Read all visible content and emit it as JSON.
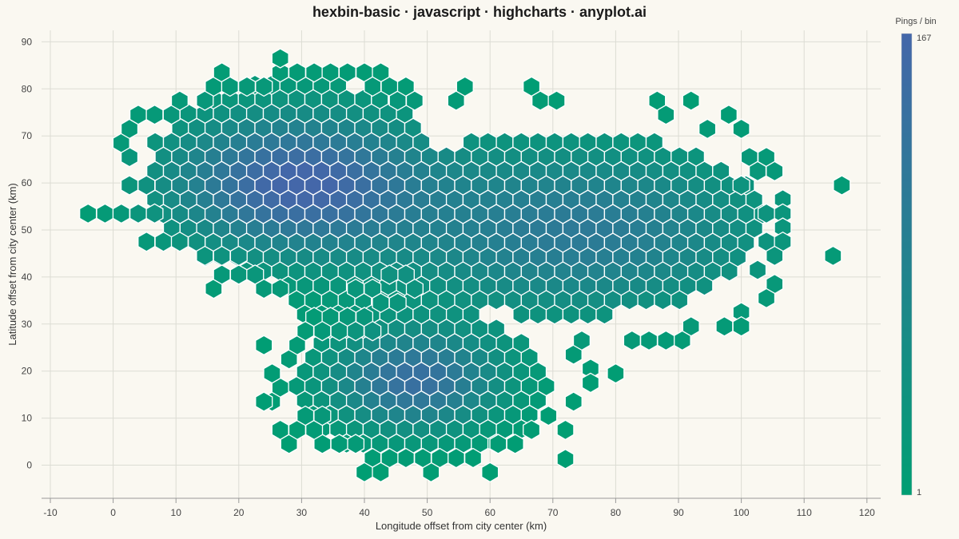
{
  "title": "hexbin-basic · javascript · highcharts · anyplot.ai",
  "colors": {
    "background": "#FAF8F1",
    "low": "#009E73",
    "high": "#4467A9",
    "hex_stroke": "#FFFFFF",
    "grid": "#DCDCD4"
  },
  "chart_data": {
    "type": "heatmap",
    "subtype": "hexbin",
    "title": "hexbin-basic · javascript · highcharts · anyplot.ai",
    "xlabel": "Longitude offset from city center (km)",
    "ylabel": "Latitude offset from city center (km)",
    "xlim": [
      -10,
      122
    ],
    "ylim": [
      -7,
      93
    ],
    "xticks": [
      "-10",
      "0",
      "10",
      "20",
      "30",
      "40",
      "50",
      "60",
      "70",
      "80",
      "90",
      "100",
      "110",
      "120"
    ],
    "yticks": [
      "0",
      "10",
      "20",
      "30",
      "40",
      "50",
      "60",
      "70",
      "80",
      "90"
    ],
    "grid": true,
    "hex_width_km": 2.65,
    "row_spacing_km": 3.05,
    "colorbar": {
      "title": "Pings / bin",
      "min": 1,
      "max": 167,
      "min_label": "1",
      "max_label": "167",
      "position": "right"
    },
    "clusters": [
      {
        "x": 29,
        "y": 60,
        "sx": 14,
        "sy": 10,
        "peak": 167
      },
      {
        "x": 48,
        "y": 18,
        "sx": 9,
        "sy": 7,
        "peak": 140
      },
      {
        "x": 74,
        "y": 50,
        "sx": 20,
        "sy": 12,
        "peak": 110
      }
    ],
    "bins": [
      [
        -4,
        53.5
      ],
      [
        -1.3,
        53.5
      ],
      [
        1.3,
        53.5
      ],
      [
        4,
        53.5
      ],
      [
        6.6,
        53.5
      ],
      [
        5.3,
        47.5
      ],
      [
        8,
        47.5
      ],
      [
        10.6,
        47.5
      ],
      [
        13.3,
        47.5
      ],
      [
        2.6,
        59.5
      ],
      [
        5.3,
        59.5
      ],
      [
        2.6,
        65.5
      ],
      [
        1.3,
        68.5
      ],
      [
        2.6,
        71.5
      ],
      [
        4,
        74.5
      ],
      [
        6.6,
        74.5
      ],
      [
        9.3,
        74.5
      ],
      [
        10.6,
        77.5
      ],
      [
        14.6,
        77.5
      ],
      [
        16,
        80.5
      ],
      [
        17.3,
        83.5
      ],
      [
        18.6,
        80.5
      ],
      [
        21.3,
        80.5
      ],
      [
        24,
        80.5
      ],
      [
        26.6,
        83.5
      ],
      [
        26.6,
        86.5
      ],
      [
        29.3,
        83.5
      ],
      [
        32,
        83.5
      ],
      [
        34.6,
        83.5
      ],
      [
        37.3,
        83.5
      ],
      [
        40,
        83.5
      ],
      [
        42.6,
        83.5
      ],
      [
        41.3,
        80.5
      ],
      [
        44,
        80.5
      ],
      [
        45.3,
        77.5
      ],
      [
        46.6,
        80.5
      ],
      [
        48,
        77.5
      ],
      [
        54.6,
        77.5
      ],
      [
        56,
        80.5
      ],
      [
        66.6,
        80.5
      ],
      [
        68,
        77.5
      ],
      [
        70.6,
        77.5
      ],
      [
        86.6,
        77.5
      ],
      [
        92,
        77.5
      ],
      [
        88,
        74.5
      ],
      [
        98,
        74.5
      ],
      [
        94.6,
        71.5
      ],
      [
        100,
        71.5
      ],
      [
        101.3,
        65.5
      ],
      [
        104,
        65.5
      ],
      [
        102.6,
        62.5
      ],
      [
        105.3,
        62.5
      ],
      [
        100,
        59.5
      ],
      [
        116,
        59.5
      ],
      [
        106.6,
        56.5
      ],
      [
        104,
        53.5
      ],
      [
        106.6,
        53.5
      ],
      [
        106.6,
        50.5
      ],
      [
        104,
        47.5
      ],
      [
        106.6,
        47.5
      ],
      [
        105.3,
        44.5
      ],
      [
        114.6,
        44.5
      ],
      [
        102.6,
        41.5
      ],
      [
        105.3,
        38.5
      ],
      [
        104,
        35.5
      ],
      [
        100,
        32.5
      ],
      [
        97.3,
        29.5
      ],
      [
        100,
        29.5
      ],
      [
        92,
        29.5
      ],
      [
        90.6,
        26.5
      ],
      [
        88,
        26.5
      ],
      [
        85.3,
        26.5
      ],
      [
        82.6,
        26.5
      ],
      [
        76,
        20.5
      ],
      [
        80,
        19.5
      ],
      [
        76,
        17.5
      ],
      [
        73.3,
        23.5
      ],
      [
        74.6,
        26.5
      ],
      [
        73.3,
        13.5
      ],
      [
        72,
        7.5
      ],
      [
        72,
        1.3
      ],
      [
        66.6,
        7.5
      ],
      [
        69.3,
        10.5
      ],
      [
        64,
        4.5
      ],
      [
        61.3,
        4.5
      ],
      [
        60,
        -1.5
      ],
      [
        57.3,
        1.5
      ],
      [
        54.6,
        1.5
      ],
      [
        52,
        1.5
      ],
      [
        50.6,
        -1.5
      ],
      [
        49.3,
        1.5
      ],
      [
        46.6,
        1.5
      ],
      [
        44,
        1.5
      ],
      [
        41.3,
        1.5
      ],
      [
        40,
        -1.5
      ],
      [
        42.6,
        -1.5
      ],
      [
        38.6,
        4.5
      ],
      [
        36,
        4.5
      ],
      [
        33.3,
        4.5
      ],
      [
        28,
        4.5
      ],
      [
        26.6,
        7.5
      ],
      [
        29.3,
        7.5
      ],
      [
        32,
        7.5
      ],
      [
        30.6,
        10.5
      ],
      [
        33.3,
        10.5
      ],
      [
        25.3,
        13.5
      ],
      [
        24,
        13.5
      ],
      [
        26.6,
        16.5
      ],
      [
        25.3,
        19.5
      ],
      [
        28,
        22.5
      ],
      [
        24,
        25.5
      ],
      [
        29.3,
        25.5
      ],
      [
        30.6,
        28.5
      ],
      [
        32,
        31.5
      ],
      [
        34.6,
        31.5
      ],
      [
        37.3,
        31.5
      ],
      [
        36,
        28.5
      ],
      [
        33.3,
        28.5
      ],
      [
        38.6,
        28.5
      ],
      [
        40,
        31.5
      ],
      [
        41.3,
        28.5
      ],
      [
        16,
        37.5
      ],
      [
        24,
        37.5
      ],
      [
        26.6,
        37.5
      ],
      [
        17.3,
        40.5
      ],
      [
        20,
        40.5
      ],
      [
        22.6,
        40.5
      ],
      [
        14.6,
        44.5
      ],
      [
        17.3,
        44.5
      ],
      [
        20,
        44.5
      ],
      [
        38.6,
        37.5
      ],
      [
        41.3,
        37.5
      ],
      [
        42.6,
        34.5
      ],
      [
        45.3,
        34.5
      ],
      [
        48,
        37.5
      ],
      [
        46.6,
        40.5
      ],
      [
        44,
        40.5
      ]
    ]
  }
}
